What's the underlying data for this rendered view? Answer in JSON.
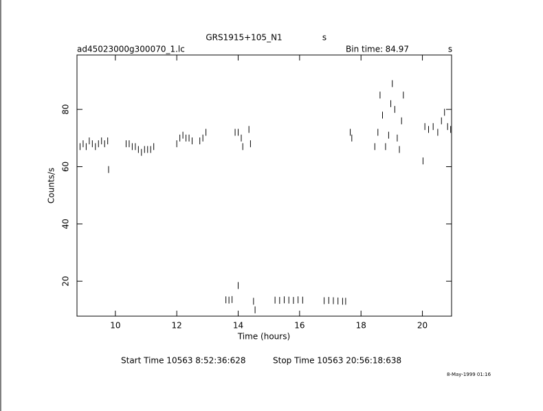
{
  "chart_data": {
    "type": "scatter",
    "title": "GRS1915+105_N1",
    "title_unit": "s",
    "file_name": "ad45023000g300070_1.lc",
    "bin_time_label": "Bin time:",
    "bin_time": "84.97",
    "bin_time_unit": "s",
    "xlabel": "Time (hours)",
    "ylabel": "Counts/s",
    "start_time": "Start Time 10563  8:52:36:628",
    "stop_time": "Stop Time 10563 20:56:18:638",
    "date": "8-May-1999 01:16",
    "color": "#000000",
    "xlim": [
      8.75,
      20.95
    ],
    "ylim": [
      7.8,
      99
    ],
    "xticks": [
      10,
      12,
      14,
      16,
      18,
      20
    ],
    "yticks": [
      20,
      40,
      60,
      80
    ],
    "series": [
      {
        "x": [
          8.85,
          8.95,
          9.05,
          9.15,
          9.25,
          9.35,
          9.45,
          9.55,
          9.65,
          9.75,
          9.78,
          10.35,
          10.45,
          10.55,
          10.65,
          10.75,
          10.85,
          10.95,
          11.05,
          11.15,
          11.25,
          12.0,
          12.1,
          12.2,
          12.3,
          12.4,
          12.5,
          12.75,
          12.85,
          12.95,
          13.6,
          13.7,
          13.8,
          13.9,
          14.0,
          14.0,
          14.1,
          14.15,
          14.35,
          14.4,
          14.5,
          14.55,
          15.2,
          15.35,
          15.5,
          15.65,
          15.8,
          15.95,
          16.1,
          16.8,
          16.95,
          17.1,
          17.25,
          17.4,
          17.5,
          17.65,
          17.7,
          18.45,
          18.55,
          18.62,
          18.7,
          18.8,
          18.9,
          18.97,
          19.02,
          19.1,
          19.18,
          19.25,
          19.32,
          19.38,
          20.02,
          20.08,
          20.2,
          20.35,
          20.5,
          20.62,
          20.72,
          20.82,
          20.92
        ],
        "values": [
          67,
          68,
          67,
          69,
          68,
          67,
          68,
          69,
          68,
          69,
          59,
          68,
          68,
          67,
          67,
          66,
          65,
          66,
          66,
          66,
          67,
          68,
          70,
          71,
          70,
          70,
          69,
          69,
          70,
          72,
          13.5,
          13.4,
          13.6,
          72,
          72,
          18.5,
          70,
          67,
          73,
          68,
          13,
          10,
          13.4,
          13.3,
          13.5,
          13.4,
          13.3,
          13.5,
          13.4,
          13.2,
          13.3,
          13.2,
          13.1,
          13.0,
          13.0,
          72,
          70,
          67,
          72,
          85,
          78,
          67,
          71,
          82,
          89,
          80,
          70,
          66,
          76,
          85,
          62,
          74,
          73,
          74,
          72,
          76,
          79,
          74,
          73
        ]
      }
    ]
  }
}
